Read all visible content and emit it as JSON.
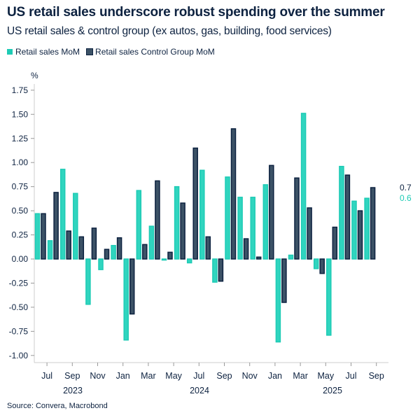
{
  "title": "US retail sales underscore robust spending over the summer",
  "subtitle": "US retail sales & control group (ex autos, gas, building, food services)",
  "source": "Source: Convera, Macrobond",
  "chart_data": {
    "type": "bar",
    "ylabel": "%",
    "ylim": [
      -1.0,
      1.75
    ],
    "yticks": [
      "1.75",
      "1.50",
      "1.25",
      "1.00",
      "0.75",
      "0.50",
      "0.25",
      "0.00",
      "-0.25",
      "-0.50",
      "-0.75",
      "-1.00"
    ],
    "xtick_labels": [
      "Jul",
      "Sep",
      "Nov",
      "Jan",
      "Mar",
      "May",
      "Jul",
      "Sep",
      "Nov",
      "Jan",
      "Mar",
      "May",
      "Jul",
      "Sep"
    ],
    "year_labels": [
      "2023",
      "2024",
      "2025"
    ],
    "categories": [
      "Jun 2023",
      "Jul 2023",
      "Aug 2023",
      "Sep 2023",
      "Oct 2023",
      "Nov 2023",
      "Dec 2023",
      "Jan 2024",
      "Feb 2024",
      "Mar 2024",
      "Apr 2024",
      "May 2024",
      "Jun 2024",
      "Jul 2024",
      "Aug 2024",
      "Sep 2024",
      "Oct 2024",
      "Nov 2024",
      "Dec 2024",
      "Jan 2025",
      "Feb 2025",
      "Mar 2025",
      "Apr 2025",
      "May 2025",
      "Jun 2025",
      "Jul 2025",
      "Aug 2025"
    ],
    "series": [
      {
        "name": "Retail sales MoM",
        "color": "#1ecbb5",
        "values": [
          0.47,
          0.19,
          0.93,
          0.68,
          -0.47,
          -0.11,
          0.14,
          -0.84,
          0.71,
          0.34,
          -0.01,
          0.75,
          -0.04,
          0.92,
          -0.24,
          0.85,
          0.64,
          0.64,
          0.77,
          -0.86,
          0.04,
          1.51,
          -0.1,
          -0.79,
          0.96,
          0.6,
          0.63
        ],
        "end_label": "0.6"
      },
      {
        "name": "Retail sales Control Group MoM",
        "color": "#3c5266",
        "values": [
          0.47,
          0.69,
          0.29,
          0.23,
          0.32,
          0.1,
          0.22,
          -0.57,
          0.15,
          0.81,
          0.07,
          0.58,
          1.15,
          0.23,
          -0.23,
          1.35,
          0.21,
          0.02,
          0.97,
          -0.45,
          0.84,
          0.53,
          -0.15,
          0.33,
          0.87,
          0.5,
          0.74
        ],
        "end_label": "0.7"
      }
    ],
    "grid": false,
    "legend_position": "top-left"
  }
}
